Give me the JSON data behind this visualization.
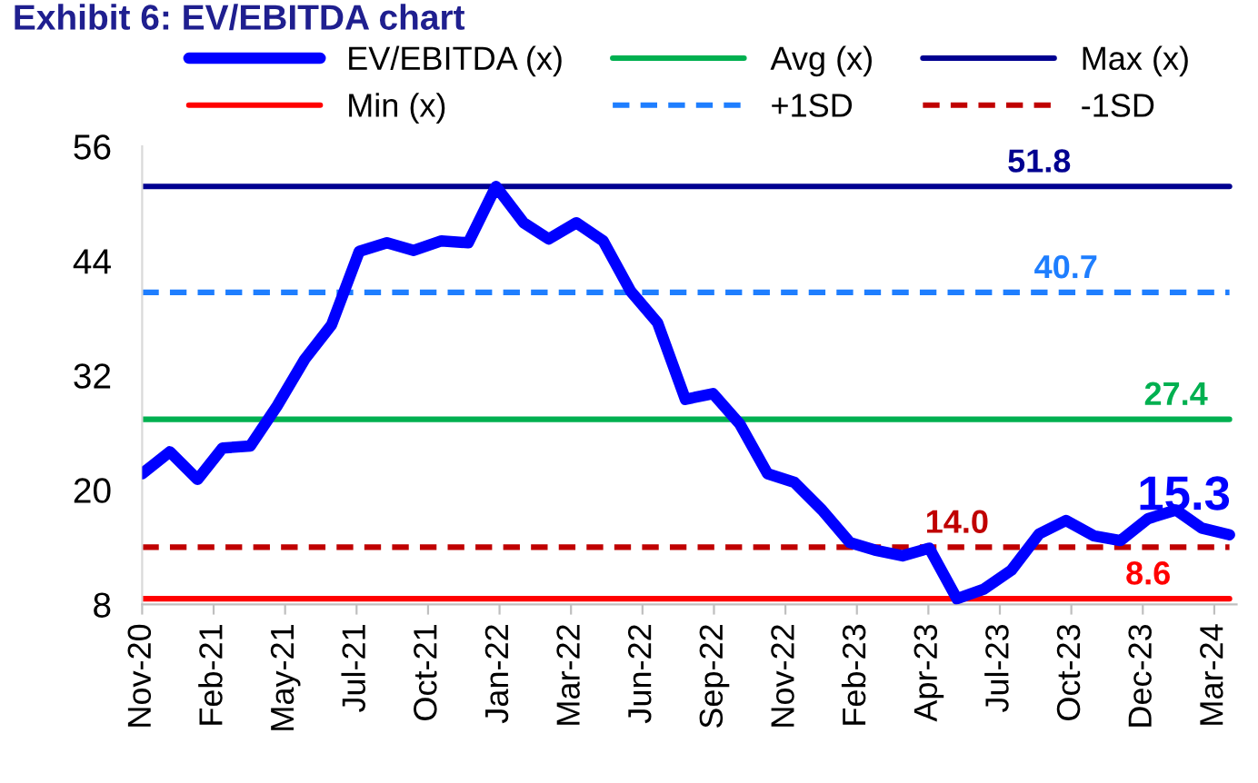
{
  "chart_data": {
    "type": "line",
    "title": "Exhibit 6: EV/EBITDA chart",
    "x": [
      "2020-11-30",
      "2020-12-31",
      "2021-01-31",
      "2021-02-28",
      "2021-03-31",
      "2021-04-30",
      "2021-05-31",
      "2021-06-30",
      "2021-07-31",
      "2021-08-31",
      "2021-09-30",
      "2021-10-31",
      "2021-11-30",
      "2021-12-31",
      "2022-01-31",
      "2022-02-28",
      "2022-03-31",
      "2022-04-30",
      "2022-05-31",
      "2022-06-30",
      "2022-07-31",
      "2022-08-31",
      "2022-09-30",
      "2022-10-31",
      "2022-11-30",
      "2022-12-31",
      "2023-01-31",
      "2023-02-28",
      "2023-03-31",
      "2023-04-30",
      "2023-05-31",
      "2023-06-30",
      "2023-07-31",
      "2023-08-31",
      "2023-09-30",
      "2023-10-31",
      "2023-11-30",
      "2023-12-31",
      "2024-01-31",
      "2024-02-29",
      "2024-03-31"
    ],
    "series": [
      {
        "name": "EV/EBITDA (x)",
        "color": "#0000ff",
        "values": [
          21.7,
          24.0,
          21.1,
          24.4,
          24.6,
          28.8,
          33.7,
          37.3,
          45.0,
          45.9,
          45.1,
          46.1,
          45.9,
          51.8,
          48.0,
          46.3,
          48.0,
          46.1,
          40.8,
          37.5,
          29.5,
          30.1,
          26.9,
          21.7,
          20.8,
          17.9,
          14.5,
          13.7,
          13.1,
          13.9,
          8.6,
          9.6,
          11.6,
          15.4,
          16.8,
          15.2,
          14.7,
          17.0,
          17.9,
          16.0,
          15.3
        ],
        "value_labels": [
          null,
          null,
          null,
          null,
          null,
          null,
          null,
          null,
          null,
          null,
          null,
          null,
          null,
          null,
          null,
          null,
          null,
          null,
          null,
          null,
          null,
          null,
          null,
          null,
          null,
          null,
          null,
          null,
          null,
          null,
          null,
          null,
          null,
          null,
          null,
          null,
          null,
          null,
          null,
          null,
          "15.3"
        ]
      },
      {
        "name": "Avg (x)",
        "color": "#00b050",
        "values": [
          27.4,
          27.4,
          27.4,
          27.4,
          27.4,
          27.4,
          27.4,
          27.4,
          27.4,
          27.4,
          27.4,
          27.4,
          27.4,
          27.4,
          27.4,
          27.4,
          27.4,
          27.4,
          27.4,
          27.4,
          27.4,
          27.4,
          27.4,
          27.4,
          27.4,
          27.4,
          27.4,
          27.4,
          27.4,
          27.4,
          27.4,
          27.4,
          27.4,
          27.4,
          27.4,
          27.4,
          27.4,
          27.4,
          27.4,
          27.4,
          27.4
        ],
        "value_labels": [
          null,
          null,
          null,
          null,
          null,
          null,
          null,
          null,
          null,
          null,
          null,
          null,
          null,
          null,
          null,
          null,
          null,
          null,
          null,
          null,
          null,
          null,
          null,
          null,
          null,
          null,
          null,
          null,
          null,
          null,
          null,
          null,
          null,
          null,
          null,
          null,
          null,
          null,
          "27.4",
          null,
          null
        ]
      },
      {
        "name": "Max (x)",
        "color": "#000090",
        "values": [
          51.8,
          51.8,
          51.8,
          51.8,
          51.8,
          51.8,
          51.8,
          51.8,
          51.8,
          51.8,
          51.8,
          51.8,
          51.8,
          51.8,
          51.8,
          51.8,
          51.8,
          51.8,
          51.8,
          51.8,
          51.8,
          51.8,
          51.8,
          51.8,
          51.8,
          51.8,
          51.8,
          51.8,
          51.8,
          51.8,
          51.8,
          51.8,
          51.8,
          51.8,
          51.8,
          51.8,
          51.8,
          51.8,
          51.8,
          51.8,
          51.8
        ],
        "value_labels": [
          null,
          null,
          null,
          null,
          null,
          null,
          null,
          null,
          null,
          null,
          null,
          null,
          null,
          null,
          null,
          null,
          null,
          null,
          null,
          null,
          null,
          null,
          null,
          null,
          null,
          null,
          null,
          null,
          null,
          null,
          null,
          null,
          null,
          "51.8",
          null,
          null,
          null,
          null,
          null,
          null,
          null
        ]
      },
      {
        "name": "Min (x)",
        "color": "#ff0000",
        "values": [
          8.6,
          8.6,
          8.6,
          8.6,
          8.6,
          8.6,
          8.6,
          8.6,
          8.6,
          8.6,
          8.6,
          8.6,
          8.6,
          8.6,
          8.6,
          8.6,
          8.6,
          8.6,
          8.6,
          8.6,
          8.6,
          8.6,
          8.6,
          8.6,
          8.6,
          8.6,
          8.6,
          8.6,
          8.6,
          8.6,
          8.6,
          8.6,
          8.6,
          8.6,
          8.6,
          8.6,
          8.6,
          8.6,
          8.6,
          8.6,
          8.6
        ],
        "value_labels": [
          null,
          null,
          null,
          null,
          null,
          null,
          null,
          null,
          null,
          null,
          null,
          null,
          null,
          null,
          null,
          null,
          null,
          null,
          null,
          null,
          null,
          null,
          null,
          null,
          null,
          null,
          null,
          null,
          null,
          null,
          null,
          null,
          null,
          null,
          null,
          null,
          null,
          "8.6",
          null,
          null,
          null
        ]
      },
      {
        "name": "+1SD",
        "color": "#1e7eff",
        "line_style": "dashed",
        "values": [
          40.7,
          40.7,
          40.7,
          40.7,
          40.7,
          40.7,
          40.7,
          40.7,
          40.7,
          40.7,
          40.7,
          40.7,
          40.7,
          40.7,
          40.7,
          40.7,
          40.7,
          40.7,
          40.7,
          40.7,
          40.7,
          40.7,
          40.7,
          40.7,
          40.7,
          40.7,
          40.7,
          40.7,
          40.7,
          40.7,
          40.7,
          40.7,
          40.7,
          40.7,
          40.7,
          40.7,
          40.7,
          40.7,
          40.7,
          40.7,
          40.7
        ],
        "value_labels": [
          null,
          null,
          null,
          null,
          null,
          null,
          null,
          null,
          null,
          null,
          null,
          null,
          null,
          null,
          null,
          null,
          null,
          null,
          null,
          null,
          null,
          null,
          null,
          null,
          null,
          null,
          null,
          null,
          null,
          null,
          null,
          null,
          null,
          null,
          "40.7",
          null,
          null,
          null,
          null,
          null,
          null
        ]
      },
      {
        "name": "-1SD",
        "color": "#c00000",
        "line_style": "dashed",
        "values": [
          14.0,
          14.0,
          14.0,
          14.0,
          14.0,
          14.0,
          14.0,
          14.0,
          14.0,
          14.0,
          14.0,
          14.0,
          14.0,
          14.0,
          14.0,
          14.0,
          14.0,
          14.0,
          14.0,
          14.0,
          14.0,
          14.0,
          14.0,
          14.0,
          14.0,
          14.0,
          14.0,
          14.0,
          14.0,
          14.0,
          14.0,
          14.0,
          14.0,
          14.0,
          14.0,
          14.0,
          14.0,
          14.0,
          14.0,
          14.0,
          14.0
        ],
        "value_labels": [
          null,
          null,
          null,
          null,
          null,
          null,
          null,
          null,
          null,
          null,
          null,
          null,
          null,
          null,
          null,
          null,
          null,
          null,
          null,
          null,
          null,
          null,
          null,
          null,
          null,
          null,
          null,
          null,
          null,
          null,
          "14.0",
          null,
          null,
          null,
          null,
          null,
          null,
          null,
          null,
          null,
          null
        ]
      }
    ],
    "xlim": [
      "2020-11-30",
      "2024-04-08"
    ],
    "xticks": [
      {
        "value": "2020-11-30",
        "label": "Nov-20"
      },
      {
        "value": "2021-02-18",
        "label": "Feb-21"
      },
      {
        "value": "2021-05-09",
        "label": "May-21"
      },
      {
        "value": "2021-07-28",
        "label": "Jul-21"
      },
      {
        "value": "2021-10-16",
        "label": "Oct-21"
      },
      {
        "value": "2022-01-04",
        "label": "Jan-22"
      },
      {
        "value": "2022-03-25",
        "label": "Mar-22"
      },
      {
        "value": "2022-06-13",
        "label": "Jun-22"
      },
      {
        "value": "2022-09-01",
        "label": "Sep-22"
      },
      {
        "value": "2022-11-20",
        "label": "Nov-22"
      },
      {
        "value": "2023-02-08",
        "label": "Feb-23"
      },
      {
        "value": "2023-04-29",
        "label": "Apr-23"
      },
      {
        "value": "2023-07-18",
        "label": "Jul-23"
      },
      {
        "value": "2023-10-06",
        "label": "Oct-23"
      },
      {
        "value": "2023-12-25",
        "label": "Dec-23"
      },
      {
        "value": "2024-03-14",
        "label": "Mar-24"
      }
    ],
    "ylim": [
      8,
      56
    ],
    "yticks": [
      8,
      20,
      32,
      44,
      56
    ],
    "grid": false,
    "legend": "top",
    "marker": "none",
    "line_style": "solid"
  }
}
